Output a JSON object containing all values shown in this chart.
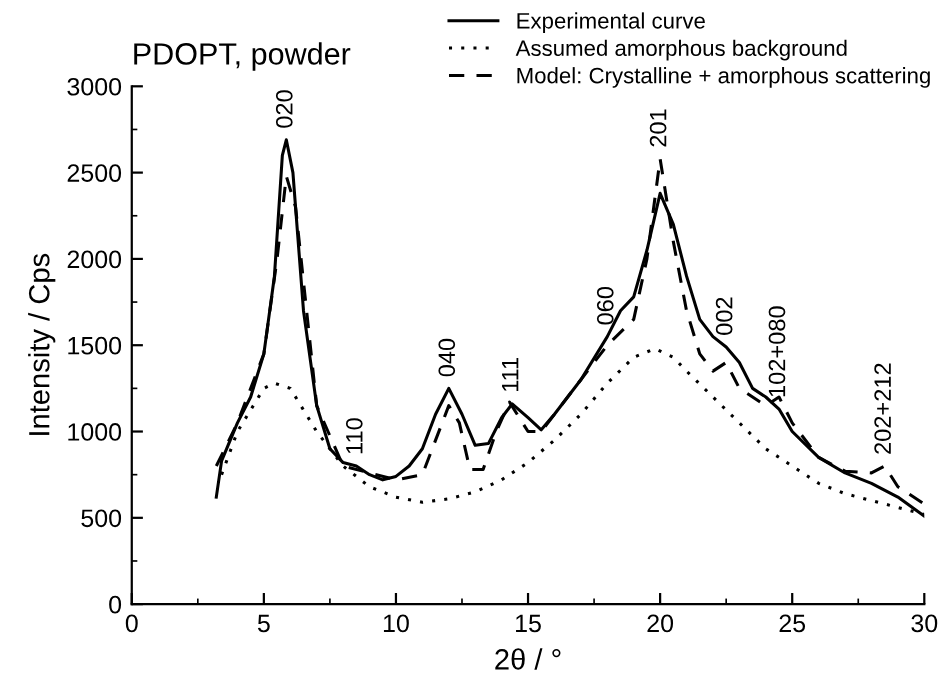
{
  "chart_data": {
    "type": "line",
    "title": "PDOPT, powder",
    "xlabel": "2θ / °",
    "ylabel": "Intensity / Cps",
    "xlim": [
      0,
      30
    ],
    "xticks": [
      0,
      5,
      10,
      15,
      20,
      25,
      30
    ],
    "ylim": [
      0,
      3000
    ],
    "yticks": [
      0,
      500,
      1000,
      1500,
      2000,
      2500,
      3000
    ],
    "grid": false,
    "legend": "top right",
    "marker": "none",
    "series": [
      {
        "name": "Experimental curve",
        "color": "#000000",
        "line_style": "solid",
        "x": [
          3.2,
          3.4,
          4,
          4.5,
          5,
          5.4,
          5.7,
          5.85,
          6.1,
          6.5,
          7,
          7.5,
          8,
          8.5,
          9,
          9.5,
          10,
          10.5,
          11,
          11.5,
          12,
          12.5,
          13,
          13.5,
          14,
          14.4,
          15,
          15.5,
          16,
          17,
          18,
          18.5,
          19,
          19.5,
          20,
          20.5,
          21,
          21.5,
          22,
          22.5,
          23,
          23.5,
          24,
          24.5,
          25,
          26,
          27,
          28,
          29,
          30
        ],
        "values": [
          620,
          830,
          1050,
          1200,
          1450,
          1900,
          2600,
          2690,
          2500,
          1700,
          1150,
          900,
          820,
          800,
          750,
          720,
          740,
          800,
          900,
          1100,
          1250,
          1100,
          920,
          930,
          1080,
          1160,
          1080,
          1010,
          1100,
          1300,
          1550,
          1700,
          1780,
          2050,
          2380,
          2200,
          1900,
          1650,
          1550,
          1490,
          1400,
          1250,
          1200,
          1130,
          1000,
          850,
          760,
          700,
          620,
          510
        ]
      },
      {
        "name": "Assumed amorphous background",
        "color": "#000000",
        "line_style": "dotted",
        "x": [
          3.4,
          4,
          5,
          5.4,
          6,
          7,
          8,
          9,
          10,
          11,
          12,
          13,
          14,
          15,
          16,
          17,
          18,
          19,
          19.8,
          20.5,
          21,
          22,
          23,
          24,
          25,
          26,
          27,
          28,
          29,
          30
        ],
        "values": [
          750,
          1000,
          1250,
          1280,
          1250,
          1000,
          800,
          680,
          620,
          590,
          610,
          650,
          720,
          820,
          950,
          1100,
          1280,
          1430,
          1480,
          1430,
          1350,
          1200,
          1050,
          900,
          800,
          700,
          640,
          600,
          560,
          520
        ]
      },
      {
        "name": "Model: Crystalline + amorphous scattering",
        "color": "#000000",
        "line_style": "dashed",
        "x": [
          3.2,
          4,
          5,
          5.5,
          5.85,
          6.2,
          7,
          8,
          9,
          10,
          11,
          11.5,
          12,
          12.4,
          12.8,
          13.3,
          13.8,
          14.3,
          15,
          15.5,
          17,
          18,
          19,
          19.5,
          20,
          20.5,
          21,
          21.5,
          22,
          22.5,
          23,
          24,
          24.5,
          25,
          26,
          27,
          28,
          28.5,
          29,
          30
        ],
        "values": [
          800,
          1050,
          1450,
          2000,
          2480,
          2300,
          1150,
          800,
          760,
          720,
          750,
          950,
          1150,
          1050,
          780,
          780,
          1000,
          1170,
          1000,
          1000,
          1300,
          1500,
          1650,
          2000,
          2580,
          2100,
          1700,
          1450,
          1350,
          1400,
          1250,
          1150,
          1200,
          1050,
          850,
          770,
          760,
          800,
          680,
          580
        ]
      }
    ],
    "annotations": [
      {
        "text": "020",
        "x": 5.85,
        "y": 2690
      },
      {
        "text": "110",
        "x": 8.5,
        "y": 800
      },
      {
        "text": "040",
        "x": 12,
        "y": 1250
      },
      {
        "text": "111",
        "x": 14.4,
        "y": 1160
      },
      {
        "text": "060",
        "x": 18,
        "y": 1550
      },
      {
        "text": "201",
        "x": 20,
        "y": 2580
      },
      {
        "text": "002",
        "x": 22.5,
        "y": 1490
      },
      {
        "text": "102+080",
        "x": 24.5,
        "y": 1130
      },
      {
        "text": "202+212",
        "x": 28.5,
        "y": 800
      }
    ]
  }
}
